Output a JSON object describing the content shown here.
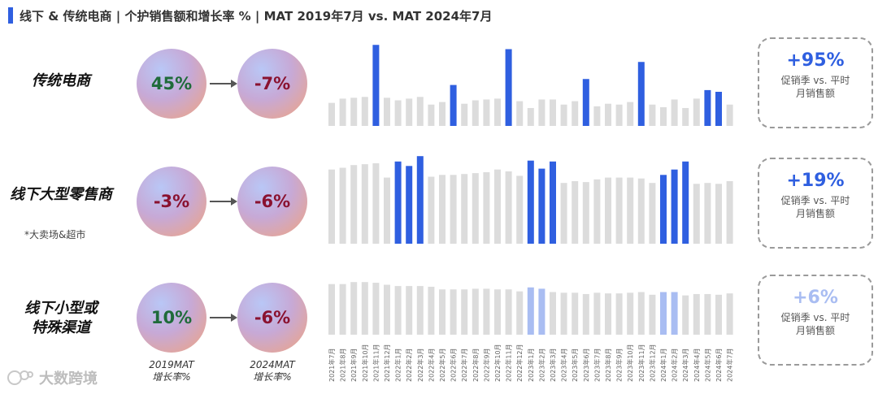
{
  "header": {
    "title": "线下 & 传统电商 | 个护销售额和增长率 % | MAT 2019年7月 vs. MAT 2024年7月"
  },
  "colors": {
    "accent": "#2f5fe0",
    "highlight_light": "#a9bdf2",
    "gray_bar": "#dcdcdc"
  },
  "column_labels": {
    "mat2019": [
      "2019MAT",
      "增长率%"
    ],
    "mat2024": [
      "2024MAT",
      "增长率%"
    ]
  },
  "rows": [
    {
      "label": [
        "传统电商"
      ],
      "note": "",
      "growth_2019": "45%",
      "growth_2024": "-7%",
      "callout_value": "+95%",
      "callout_desc": [
        "促销季 vs. 平时",
        "月销售额"
      ]
    },
    {
      "label": [
        "线下大型零售商"
      ],
      "note": "*大卖场&超市",
      "growth_2019": "-3%",
      "growth_2024": "-6%",
      "callout_value": "+19%",
      "callout_desc": [
        "促销季 vs. 平时",
        "月销售额"
      ]
    },
    {
      "label": [
        "线下小型或",
        "特殊渠道"
      ],
      "note": "",
      "growth_2019": "10%",
      "growth_2024": "-6%",
      "callout_value": "+6%",
      "callout_desc": [
        "促销季 vs. 平时",
        "月销售额"
      ]
    }
  ],
  "chart_data": {
    "type": "bar",
    "categories": [
      "2021年7月",
      "2021年8月",
      "2021年9月",
      "2021年10月",
      "2021年11月",
      "2021年12月",
      "2022年1月",
      "2022年2月",
      "2022年3月",
      "2022年4月",
      "2022年5月",
      "2022年6月",
      "2022年7月",
      "2022年8月",
      "2022年9月",
      "2022年10月",
      "2022年11月",
      "2022年12月",
      "2023年1月",
      "2023年2月",
      "2023年3月",
      "2023年4月",
      "2023年5月",
      "2023年6月",
      "2023年7月",
      "2023年8月",
      "2023年9月",
      "2023年10月",
      "2023年11月",
      "2023年12月",
      "2024年1月",
      "2024年2月",
      "2024年3月",
      "2024年4月",
      "2024年5月",
      "2024年6月",
      "2024年7月"
    ],
    "series": [
      {
        "values": [
          27,
          32,
          33,
          34,
          95,
          33,
          30,
          32,
          34,
          25,
          28,
          48,
          26,
          30,
          31,
          32,
          90,
          29,
          21,
          31,
          31,
          25,
          29,
          55,
          23,
          26,
          25,
          28,
          75,
          25,
          22,
          31,
          21,
          32,
          42,
          40,
          25
        ],
        "highlight": [
          4,
          11,
          16,
          23,
          28,
          34,
          35
        ],
        "highlight_style": "solid"
      },
      {
        "values": [
          83,
          85,
          88,
          89,
          90,
          74,
          92,
          87,
          98,
          75,
          77,
          77,
          78,
          79,
          80,
          83,
          81,
          76,
          93,
          84,
          92,
          68,
          70,
          69,
          72,
          74,
          74,
          74,
          73,
          68,
          77,
          83,
          92,
          67,
          68,
          67,
          70
        ],
        "highlight": [
          6,
          7,
          8,
          18,
          19,
          20,
          30,
          31,
          32
        ],
        "highlight_style": "solid"
      },
      {
        "values": [
          76,
          76,
          79,
          79,
          78,
          75,
          73,
          73,
          73,
          72,
          68,
          68,
          68,
          69,
          69,
          68,
          68,
          65,
          71,
          69,
          64,
          63,
          63,
          61,
          63,
          62,
          62,
          63,
          64,
          60,
          64,
          64,
          59,
          61,
          61,
          60,
          62
        ],
        "highlight": [
          18,
          19,
          30,
          31
        ],
        "highlight_style": "light"
      }
    ]
  },
  "watermark": {
    "logo_text": "大数跨境"
  }
}
